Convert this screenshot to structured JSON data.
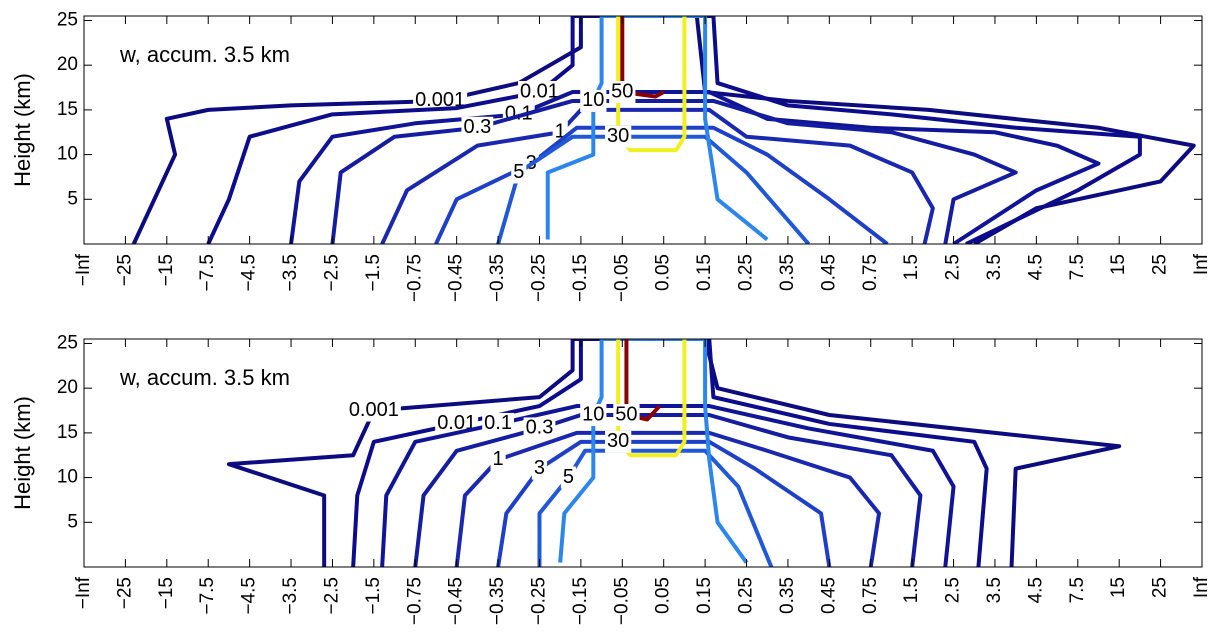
{
  "chart_data": [
    {
      "type": "contour",
      "title": "w, accum. 3.5 km",
      "ylabel": "Height (km)",
      "categories": [
        "−Inf",
        "−25",
        "−15",
        "−7.5",
        "−4.5",
        "−3.5",
        "−2.5",
        "−1.5",
        "−0.75",
        "−0.45",
        "−0.35",
        "−0.25",
        "−0.15",
        "−0.05",
        "0.05",
        "0.15",
        "0.25",
        "0.35",
        "0.45",
        "0.75",
        "1.5",
        "2.5",
        "3.5",
        "4.5",
        "7.5",
        "15",
        "25",
        "Inf"
      ],
      "ylim": [
        0,
        25.5
      ],
      "yticks": [
        5,
        10,
        15,
        20,
        25
      ],
      "contours": [
        {
          "level": 0.001,
          "color": "#0c0c80",
          "x": [
            1.2,
            2.2,
            2.0,
            3.0,
            5.0,
            8.6,
            10.5,
            12.0,
            12.0,
            14.8,
            15.0,
            17,
            20.4,
            24.5,
            26.8,
            26.0,
            23,
            21.5
          ],
          "y": [
            0,
            10,
            14,
            15,
            15.5,
            16,
            18,
            22,
            25.5,
            25.5,
            17,
            16,
            15,
            13,
            11,
            7,
            4,
            0
          ]
        },
        {
          "level": 0.01,
          "color": "#0c0c8c",
          "x": [
            3.0,
            3.5,
            4.0,
            6.0,
            9.0,
            11.0,
            11.8,
            11.8,
            15.2,
            15.3,
            17,
            19.5,
            22.5,
            25.5,
            25.5,
            24,
            21.3
          ],
          "y": [
            0,
            5,
            12,
            14.5,
            15.2,
            17,
            20,
            25.5,
            25.5,
            18,
            15.5,
            14.5,
            13,
            12,
            10,
            6,
            0
          ]
        },
        {
          "level": 0.1,
          "color": "#101496",
          "x": [
            5.0,
            5.2,
            6.0,
            8.0,
            10.5,
            11.8,
            15.1,
            16.5,
            19,
            22,
            23.5,
            24.5,
            23,
            21
          ],
          "y": [
            0,
            7,
            12,
            13.5,
            14.5,
            17,
            17,
            14,
            13,
            12.5,
            11,
            9,
            6,
            0
          ]
        },
        {
          "level": 0.3,
          "color": "#141ca0",
          "x": [
            6.0,
            6.2,
            7.5,
            9.5,
            11.8,
            15.2,
            17,
            19.5,
            21.5,
            22.5,
            21,
            20.8
          ],
          "y": [
            0,
            8,
            12,
            13,
            16,
            16,
            13.5,
            12.5,
            10,
            8,
            5,
            0
          ]
        },
        {
          "level": 1,
          "color": "#1a28b0",
          "x": [
            7.2,
            7.8,
            9.5,
            11.5,
            12.0,
            15.1,
            16,
            18.5,
            20,
            20.5,
            20.3
          ],
          "y": [
            0,
            6,
            11,
            12.5,
            15,
            15,
            12,
            11,
            8,
            4,
            0
          ]
        },
        {
          "level": 3,
          "color": "#1e40c8",
          "x": [
            8.5,
            9.0,
            10.8,
            11.9,
            15.2,
            16.5,
            18,
            19.4
          ],
          "y": [
            0,
            5,
            9,
            13,
            13,
            10,
            5,
            0
          ]
        },
        {
          "level": 5,
          "color": "#2058d8",
          "x": [
            10,
            10.5,
            11.8,
            15.0,
            16.0,
            17.5
          ],
          "y": [
            0,
            8,
            12,
            12,
            8,
            0
          ]
        },
        {
          "level": 10,
          "color": "#2c86ec",
          "x": [
            11.2,
            11.2,
            12.3,
            12.3,
            12.5,
            12.5,
            15.0,
            15.0,
            15.0,
            15.3,
            16.5
          ],
          "y": [
            0.5,
            8,
            10,
            16,
            18,
            25.5,
            25.5,
            18,
            14,
            5,
            0.5
          ]
        },
        {
          "level": 30,
          "color": "#f0f020",
          "x": [
            12.9,
            12.9,
            13.2,
            14.3,
            14.5,
            14.5
          ],
          "y": [
            25.5,
            12,
            10.5,
            10.5,
            12,
            25.5
          ]
        },
        {
          "level": 50,
          "color": "#8b0000",
          "x": [
            13.0,
            13.0,
            13.8,
            14.0
          ],
          "y": [
            25.5,
            17,
            16.5,
            17
          ]
        }
      ]
    },
    {
      "type": "contour",
      "title": "w, accum. 3.5 km",
      "ylabel": "Height (km)",
      "categories": [
        "−Inf",
        "−25",
        "−15",
        "−7.5",
        "−4.5",
        "−3.5",
        "−2.5",
        "−1.5",
        "−0.75",
        "−0.45",
        "−0.35",
        "−0.25",
        "−0.15",
        "−0.05",
        "0.05",
        "0.15",
        "0.25",
        "0.35",
        "0.45",
        "0.75",
        "1.5",
        "2.5",
        "3.5",
        "4.5",
        "7.5",
        "15",
        "25",
        "Inf"
      ],
      "ylim": [
        0,
        25.5
      ],
      "yticks": [
        5,
        10,
        15,
        20,
        25
      ],
      "contours": [
        {
          "level": 0.001,
          "color": "#0c0c80",
          "x": [
            5.8,
            5.8,
            3.5,
            6.5,
            7.0,
            11.0,
            11.8,
            11.8,
            15.0,
            15.3,
            18,
            22,
            24.0,
            25.0,
            22.5,
            22.4
          ],
          "y": [
            0,
            8,
            11.5,
            12.5,
            17.5,
            19,
            22,
            25.5,
            25.5,
            20,
            17,
            15,
            14,
            13.5,
            11,
            0
          ]
        },
        {
          "level": 0.01,
          "color": "#0c0c8c",
          "x": [
            6.5,
            6.6,
            7.0,
            9.0,
            11.0,
            12.0,
            12.0,
            15.1,
            15.2,
            18,
            21.5,
            21.8,
            21.6
          ],
          "y": [
            0,
            8,
            14,
            16,
            18,
            21,
            25.5,
            25.5,
            19,
            16,
            14,
            11,
            0
          ]
        },
        {
          "level": 0.1,
          "color": "#101496",
          "x": [
            7.2,
            7.3,
            8.0,
            10.0,
            11.9,
            15.1,
            17.5,
            20.5,
            21.0,
            20.8
          ],
          "y": [
            0,
            8,
            14,
            16,
            18,
            18,
            15.5,
            13,
            9,
            0
          ]
        },
        {
          "level": 0.3,
          "color": "#141ca0",
          "x": [
            8.0,
            8.2,
            9.0,
            11.0,
            12.0,
            15.1,
            17,
            19.5,
            20.2,
            20.0
          ],
          "y": [
            0,
            8,
            13,
            15.5,
            17,
            17,
            14.5,
            12.5,
            8,
            0
          ]
        },
        {
          "level": 1,
          "color": "#1a28b0",
          "x": [
            9.0,
            9.2,
            10.0,
            11.9,
            15.1,
            16.5,
            18.5,
            19.2,
            19.0
          ],
          "y": [
            0,
            8,
            12,
            15,
            15,
            13,
            10,
            6,
            0
          ]
        },
        {
          "level": 3,
          "color": "#1e40c8",
          "x": [
            10.0,
            10.2,
            11.0,
            12.0,
            15.1,
            16.2,
            17.8,
            18.0
          ],
          "y": [
            0,
            6,
            11,
            14,
            14,
            11,
            6,
            0
          ]
        },
        {
          "level": 5,
          "color": "#2058d8",
          "x": [
            11.0,
            11.0,
            11.7,
            12.1,
            15.0,
            15.8,
            16.6
          ],
          "y": [
            0,
            6,
            10,
            13,
            13,
            9,
            0
          ]
        },
        {
          "level": 10,
          "color": "#2c86ec",
          "x": [
            11.5,
            11.6,
            12.3,
            12.3,
            12.5,
            12.5,
            15.0,
            15.0,
            15.1,
            15.3,
            16.0
          ],
          "y": [
            0.5,
            6,
            10,
            17,
            19,
            25.5,
            25.5,
            18,
            12,
            5,
            0.5
          ]
        },
        {
          "level": 30,
          "color": "#f0f020",
          "x": [
            12.9,
            12.9,
            13.2,
            14.3,
            14.5,
            14.5
          ],
          "y": [
            25.5,
            14,
            12.5,
            12.5,
            14,
            25.5
          ]
        },
        {
          "level": 50,
          "color": "#8b0000",
          "x": [
            13.1,
            13.1,
            13.6,
            13.9
          ],
          "y": [
            25.5,
            17,
            16.5,
            18
          ]
        }
      ]
    }
  ]
}
